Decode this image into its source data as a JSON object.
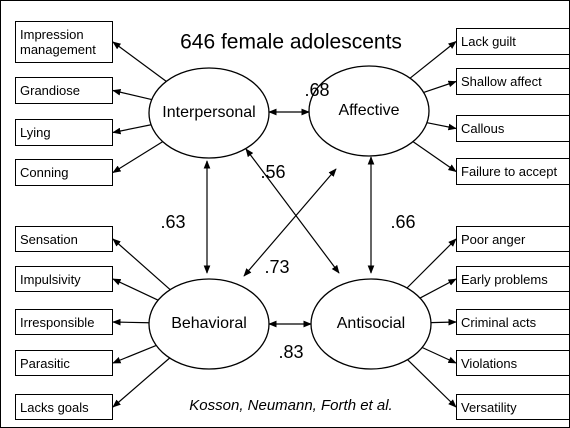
{
  "title": "646 female adolescents",
  "factors": [
    {
      "label": "Interpersonal",
      "indicators": [
        "Impression management",
        "Grandiose",
        "Lying",
        "Conning"
      ]
    },
    {
      "label": "Affective",
      "indicators": [
        "Lack guilt",
        "Shallow affect",
        "Callous",
        "Failure to accept"
      ]
    },
    {
      "label": "Behavioral",
      "indicators": [
        "Sensation",
        "Impulsivity",
        "Irresponsible",
        "Parasitic",
        "Lacks goals"
      ]
    },
    {
      "label": "Antisocial",
      "indicators": [
        "Poor anger",
        "Early problems",
        "Criminal acts",
        "Violations",
        "Versatility"
      ]
    }
  ],
  "correlations": [
    ".68",
    ".56",
    ".63",
    ".66",
    ".73",
    ".83"
  ],
  "citation": "Kosson, Neumann, Forth et al."
}
